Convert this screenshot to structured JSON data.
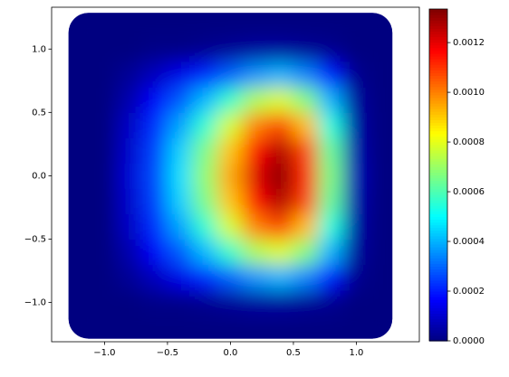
{
  "chart_data": {
    "type": "heatmap",
    "colormap": "jet",
    "x": [
      -1.2,
      -1.0,
      -0.8,
      -0.6,
      -0.4,
      -0.2,
      0.0,
      0.2,
      0.4,
      0.6,
      0.8,
      1.0,
      1.2
    ],
    "y": [
      -1.2,
      -1.0,
      -0.8,
      -0.6,
      -0.4,
      -0.2,
      0.0,
      0.2,
      0.4,
      0.6,
      0.8,
      1.0,
      1.2
    ],
    "z": [
      [
        0,
        0,
        0,
        0,
        0,
        0,
        0,
        0,
        0,
        0,
        0,
        0,
        0
      ],
      [
        0,
        0,
        0,
        1e-05,
        1e-05,
        2e-05,
        3e-05,
        4e-05,
        4e-05,
        3e-05,
        2e-05,
        0,
        0
      ],
      [
        0,
        0,
        3e-05,
        8e-05,
        0.00014,
        0.00021,
        0.00029,
        0.00036,
        0.0004,
        0.00034,
        0.0002,
        2e-05,
        0
      ],
      [
        0,
        0,
        6e-05,
        0.00016,
        0.00028,
        0.00041,
        0.00057,
        0.00073,
        0.00079,
        0.00067,
        0.0004,
        4e-05,
        0
      ],
      [
        0,
        0,
        9e-05,
        0.00022,
        0.00038,
        0.00056,
        0.00078,
        0.001,
        0.00108,
        0.00092,
        0.00054,
        5e-05,
        0
      ],
      [
        0,
        0,
        0.0001,
        0.00025,
        0.00044,
        0.00066,
        0.00091,
        0.00117,
        0.00127,
        0.00108,
        0.00063,
        6e-05,
        0
      ],
      [
        0,
        0,
        0.00011,
        0.00026,
        0.00046,
        0.00069,
        0.00095,
        0.00121,
        0.00132,
        0.00112,
        0.00066,
        7e-05,
        0
      ],
      [
        0,
        0,
        0.0001,
        0.00025,
        0.00044,
        0.00066,
        0.00091,
        0.00117,
        0.00127,
        0.00108,
        0.00063,
        6e-05,
        0
      ],
      [
        0,
        0,
        9e-05,
        0.00022,
        0.00038,
        0.00056,
        0.00078,
        0.001,
        0.00108,
        0.00092,
        0.00054,
        5e-05,
        0
      ],
      [
        0,
        0,
        6e-05,
        0.00016,
        0.00028,
        0.00041,
        0.00057,
        0.00073,
        0.00079,
        0.00067,
        0.0004,
        4e-05,
        0
      ],
      [
        0,
        0,
        3e-05,
        8e-05,
        0.00014,
        0.00021,
        0.00029,
        0.00036,
        0.0004,
        0.00034,
        0.0002,
        2e-05,
        0
      ],
      [
        0,
        0,
        0,
        1e-05,
        1e-05,
        2e-05,
        3e-05,
        4e-05,
        4e-05,
        3e-05,
        2e-05,
        0,
        0
      ],
      [
        0,
        0,
        0,
        0,
        0,
        0,
        0,
        0,
        0,
        0,
        0,
        0,
        0
      ]
    ],
    "xlim": [
      -1.42,
      1.5
    ],
    "ylim": [
      -1.31,
      1.33
    ],
    "xticks": [
      {
        "value": -1.0,
        "label": "−1.0"
      },
      {
        "value": -0.5,
        "label": "−0.5"
      },
      {
        "value": 0.0,
        "label": "0.0"
      },
      0.5,
      {
        "value": 1.0,
        "label": "1.0"
      }
    ],
    "yticks": [
      {
        "value": -1.0,
        "label": "−1.0"
      },
      {
        "value": -0.5,
        "label": "−0.5"
      },
      {
        "value": 0.0,
        "label": "0.0"
      },
      0.5,
      {
        "value": 1.0,
        "label": "1.0"
      }
    ],
    "zlim": [
      0,
      0.001335
    ],
    "zticks": [
      {
        "value": 0,
        "label": "0.0000"
      },
      {
        "value": 0.0002,
        "label": "0.0002"
      },
      {
        "value": 0.0004,
        "label": "0.0004"
      },
      {
        "value": 0.0006,
        "label": "0.0006"
      },
      {
        "value": 0.0008,
        "label": "0.0008"
      },
      {
        "value": 0.001,
        "label": "0.0010"
      },
      {
        "value": 0.0012,
        "label": "0.0012"
      }
    ]
  }
}
